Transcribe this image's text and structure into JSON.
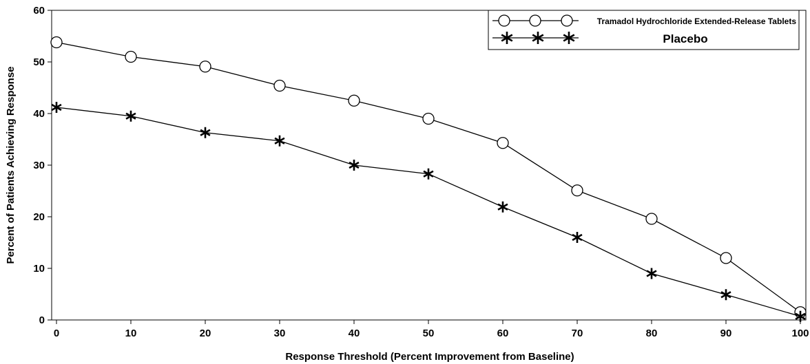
{
  "chart_data": {
    "type": "line",
    "title": "",
    "xlabel": "Response Threshold (Percent Improvement from Baseline)",
    "ylabel": "Percent of Patients Achieving Response",
    "x": [
      0,
      10,
      20,
      30,
      40,
      50,
      60,
      70,
      80,
      90,
      100
    ],
    "xlim": [
      0,
      100
    ],
    "ylim": [
      0,
      60
    ],
    "x_ticks": [
      "0",
      "10",
      "20",
      "30",
      "40",
      "50",
      "60",
      "70",
      "80",
      "90",
      "100"
    ],
    "y_ticks": [
      "0",
      "10",
      "20",
      "30",
      "40",
      "50",
      "60"
    ],
    "grid": false,
    "legend_position": "top-right",
    "series": [
      {
        "name": "Tramadol Hydrochloride Extended-Release Tablets",
        "marker": "circle",
        "values": [
          53.8,
          51.0,
          49.1,
          45.4,
          42.5,
          39.0,
          34.3,
          25.1,
          19.6,
          12.0,
          1.5
        ]
      },
      {
        "name": "Placebo",
        "marker": "star",
        "values": [
          41.2,
          39.5,
          36.3,
          34.7,
          30.0,
          28.3,
          21.9,
          16.0,
          9.0,
          4.9,
          0.7
        ]
      }
    ],
    "colors": {
      "line": "#000000",
      "background": "#ffffff"
    }
  }
}
